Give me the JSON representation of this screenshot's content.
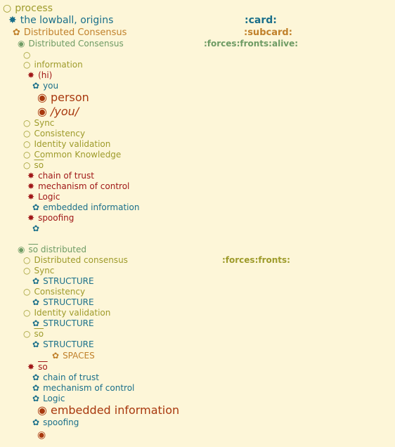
{
  "colors": {
    "background": "#fdf6d8",
    "olive": "#9e9b2b",
    "teal": "#1a6f8a",
    "orange": "#c0802a",
    "sage": "#6e9b64",
    "darkred": "#a01818",
    "brownred": "#a8380e"
  },
  "icons": {
    "circle-open": "○",
    "circle-dot": "◉",
    "star-burst": "✸",
    "flower": "✿"
  },
  "outline": [
    {
      "text": "process",
      "icon": "○"
    },
    {
      "text": "the lowball, origins",
      "icon": "✸",
      "tag": ":card:"
    },
    {
      "text": "Distributed Consensus",
      "icon": "✿",
      "tag": ":subcard:"
    },
    {
      "text": "Distributed Consensus",
      "icon": "◉",
      "tag": ":forces:fronts:alive:"
    },
    {
      "text": "",
      "icon": "○"
    },
    {
      "text": "information",
      "icon": "○"
    },
    {
      "text": "(hi)",
      "icon": "✸"
    },
    {
      "text": "you",
      "icon": "✿"
    },
    {
      "text": "person",
      "icon": "◉"
    },
    {
      "text": "/you/",
      "icon": "◉"
    },
    {
      "text": "Sync",
      "icon": "○"
    },
    {
      "text": "Consistency",
      "icon": "○"
    },
    {
      "text": "Identity validation",
      "icon": "○"
    },
    {
      "text": "Common Knowledge",
      "icon": "○"
    },
    {
      "text": "so",
      "icon": "○"
    },
    {
      "text": "chain of trust",
      "icon": "✸"
    },
    {
      "text": "mechanism of control",
      "icon": "✸"
    },
    {
      "text": "Logic",
      "icon": "✸"
    },
    {
      "text": "embedded information",
      "icon": "✿"
    },
    {
      "text": "spoofing",
      "icon": "✸"
    },
    {
      "text": "",
      "icon": "✿"
    },
    {
      "text": "so",
      "suffix": " distributed",
      "icon": "◉"
    },
    {
      "text": "Distributed consensus",
      "icon": "○",
      "tag": ":forces:fronts:"
    },
    {
      "text": "Sync",
      "icon": "○"
    },
    {
      "text": "STRUCTURE",
      "icon": "✿"
    },
    {
      "text": "Consistency",
      "icon": "○"
    },
    {
      "text": "STRUCTURE",
      "icon": "✿"
    },
    {
      "text": "Identity validation",
      "icon": "○"
    },
    {
      "text": "STRUCTURE",
      "icon": "✿"
    },
    {
      "text": "so",
      "icon": "○"
    },
    {
      "text": "STRUCTURE",
      "icon": "✿"
    },
    {
      "text": "SPACES",
      "icon": "✿"
    },
    {
      "text": "so",
      "icon": "✸"
    },
    {
      "text": "chain of trust",
      "icon": "✿"
    },
    {
      "text": "mechanism of control",
      "icon": "✿"
    },
    {
      "text": "Logic",
      "icon": "✿"
    },
    {
      "text": "embedded information",
      "icon": "◉"
    },
    {
      "text": "spoofing",
      "icon": "✿"
    },
    {
      "text": "",
      "icon": "◉"
    }
  ]
}
